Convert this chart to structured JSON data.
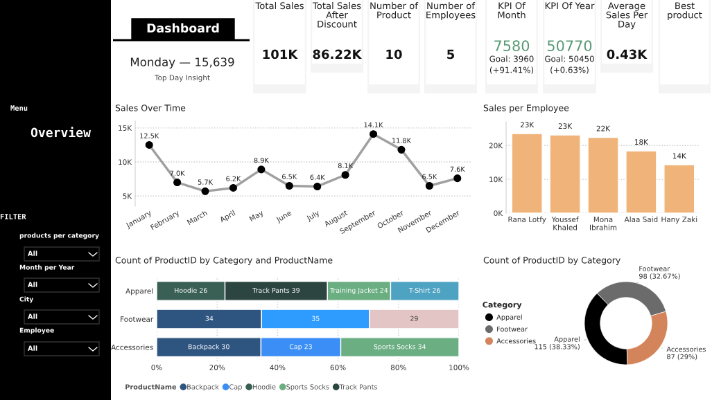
{
  "chart_data": [
    {
      "type": "other",
      "annotations": [
        "Menu",
        "Overview",
        "FILTER",
        "products per category",
        "All",
        "Month per Year",
        "All",
        "City",
        "All",
        "Employee",
        "All"
      ]
    },
    {
      "type": "other",
      "title": "Dashboard",
      "annotations": [
        "Monday — 15,639",
        "Top Day Insight"
      ]
    },
    {
      "type": "other",
      "title": "Total Sales",
      "annotations": [
        "101K"
      ]
    },
    {
      "type": "other",
      "title": "Total Sales After Discount",
      "annotations": [
        "86.22K"
      ]
    },
    {
      "type": "other",
      "title": "Number of Product",
      "annotations": [
        "10"
      ]
    },
    {
      "type": "other",
      "title": "Number of Employees",
      "annotations": [
        "5"
      ]
    },
    {
      "type": "other",
      "title": "KPI Of Month",
      "annotations": [
        "7580",
        "Goal: 3960",
        "(+91.41%)"
      ]
    },
    {
      "type": "other",
      "title": "KPI Of Year",
      "annotations": [
        "50770",
        "Goal: 50450",
        "(+0.63%)"
      ]
    },
    {
      "type": "other",
      "title": "Average Sales Per Day",
      "annotations": [
        "0.43K"
      ]
    },
    {
      "type": "other",
      "title": "Best product"
    },
    {
      "type": "line",
      "title": "Sales Over Time",
      "categories": [
        "January",
        "February",
        "March",
        "April",
        "May",
        "June",
        "July",
        "August",
        "September",
        "October",
        "November",
        "December"
      ],
      "series": [
        {
          "color": "#a0a0a0",
          "values": [
            12500,
            7000,
            5700,
            6200,
            8900,
            6500,
            6400,
            8100,
            14100,
            11800,
            6500,
            7600
          ],
          "value_labels": [
            "12.5K",
            "7.0K",
            "5.7K",
            "6.2K",
            "8.9K",
            "6.5K",
            "6.4K",
            "8.1K",
            "14.1K",
            "11.8K",
            "6.5K",
            "7.6K"
          ]
        }
      ],
      "ylim": [
        3500,
        16000
      ],
      "yticks": [
        {
          "value": 5000,
          "label": "5K"
        },
        {
          "value": 10000,
          "label": "10K"
        },
        {
          "value": 15000,
          "label": "15K"
        }
      ],
      "grid": "y",
      "marker": "circle"
    },
    {
      "type": "bar",
      "title": "Sales per Employee",
      "categories": [
        "Rana Lotfy",
        "Youssef Khaled",
        "Mona Ibrahim",
        "Alaa Said",
        "Hany Zaki"
      ],
      "values": [
        23500,
        23100,
        22400,
        18400,
        14300
      ],
      "colors": [
        "#f0b47a",
        "#f0b47a",
        "#f0b47a",
        "#f0b47a",
        "#f0b47a"
      ],
      "value_labels": [
        "23K",
        "23K",
        "22K",
        "18K",
        "14K"
      ],
      "ylim": [
        0,
        27000
      ],
      "yticks": [
        {
          "value": 0,
          "label": "0K"
        },
        {
          "value": 10000,
          "label": "10K"
        },
        {
          "value": 20000,
          "label": "20K"
        }
      ],
      "grid": "y"
    },
    {
      "type": "bar",
      "orientation": "horizontal",
      "stacked": true,
      "title": "Count of ProductID by Category and ProductName",
      "categories": [
        "Apparel",
        "Footwear",
        "Accessories"
      ],
      "legend": "bottom",
      "legend_title": "ProductName",
      "grid": "x",
      "xlim": [
        0,
        100
      ],
      "xticks": [
        {
          "value": 0,
          "label": "0%"
        },
        {
          "value": 20,
          "label": "20%"
        },
        {
          "value": 40,
          "label": "40%"
        },
        {
          "value": 60,
          "label": "60%"
        },
        {
          "value": 80,
          "label": "80%"
        },
        {
          "value": 100,
          "label": "100%"
        }
      ],
      "series": [
        {
          "name": "Backpack",
          "color": "#2e5480",
          "values": [
            null,
            null,
            34.5
          ],
          "value_labels": [
            null,
            null,
            "Backpack 30"
          ]
        },
        {
          "name": "Cap",
          "color": "#3a8ef5",
          "values": [
            null,
            null,
            26.4
          ],
          "value_labels": [
            null,
            null,
            "Cap 23"
          ]
        },
        {
          "name": "Hoodie",
          "color": "#3a5f55",
          "values": [
            22.6,
            null,
            null
          ],
          "value_labels": [
            "Hoodie 26",
            null,
            null
          ]
        },
        {
          "name": "Sports Socks",
          "color": "#6aae82",
          "values": [
            null,
            null,
            39.1
          ],
          "value_labels": [
            null,
            null,
            "Sports Socks 34"
          ]
        },
        {
          "color": "#2e5480",
          "values": [
            null,
            34.7,
            null
          ]
        },
        {
          "color": "#2e9bff",
          "values": [
            null,
            35.7,
            null
          ]
        },
        {
          "name": "Track Pants",
          "color": "#2c4540",
          "values": [
            33.9,
            null,
            null
          ],
          "value_labels": [
            "Track Pants 39",
            null,
            null
          ]
        },
        {
          "color": "#6aae82",
          "values": [
            20.9,
            null,
            null
          ],
          "value_labels": [
            "Training Jacket 24",
            null,
            null
          ]
        },
        {
          "color": "#4fa3c2",
          "values": [
            22.6,
            null,
            null
          ],
          "value_labels": [
            "T-Shirt 26",
            null,
            null
          ]
        },
        {
          "color": "#e3c5c5",
          "values": [
            null,
            29.6,
            null
          ]
        }
      ],
      "annotations": [
        {
          "text": "34",
          "x": 17.4,
          "y": "Footwear"
        },
        {
          "text": "35",
          "x": 52.6,
          "y": "Footwear"
        },
        {
          "text": "29",
          "x": 85.2,
          "y": "Footwear"
        }
      ]
    },
    {
      "type": "donut",
      "title": "Count of ProductID by Category",
      "categories": [
        "Apparel",
        "Footwear",
        "Accessories"
      ],
      "values": [
        115,
        98,
        87
      ],
      "colors": [
        "#000000",
        "#6b6b6b",
        "#d4845a"
      ],
      "value_labels": [
        "115 (38.33%)",
        "98 (32.67%)",
        "87 (29%)"
      ],
      "legend": "left",
      "legend_title": "Category"
    }
  ]
}
